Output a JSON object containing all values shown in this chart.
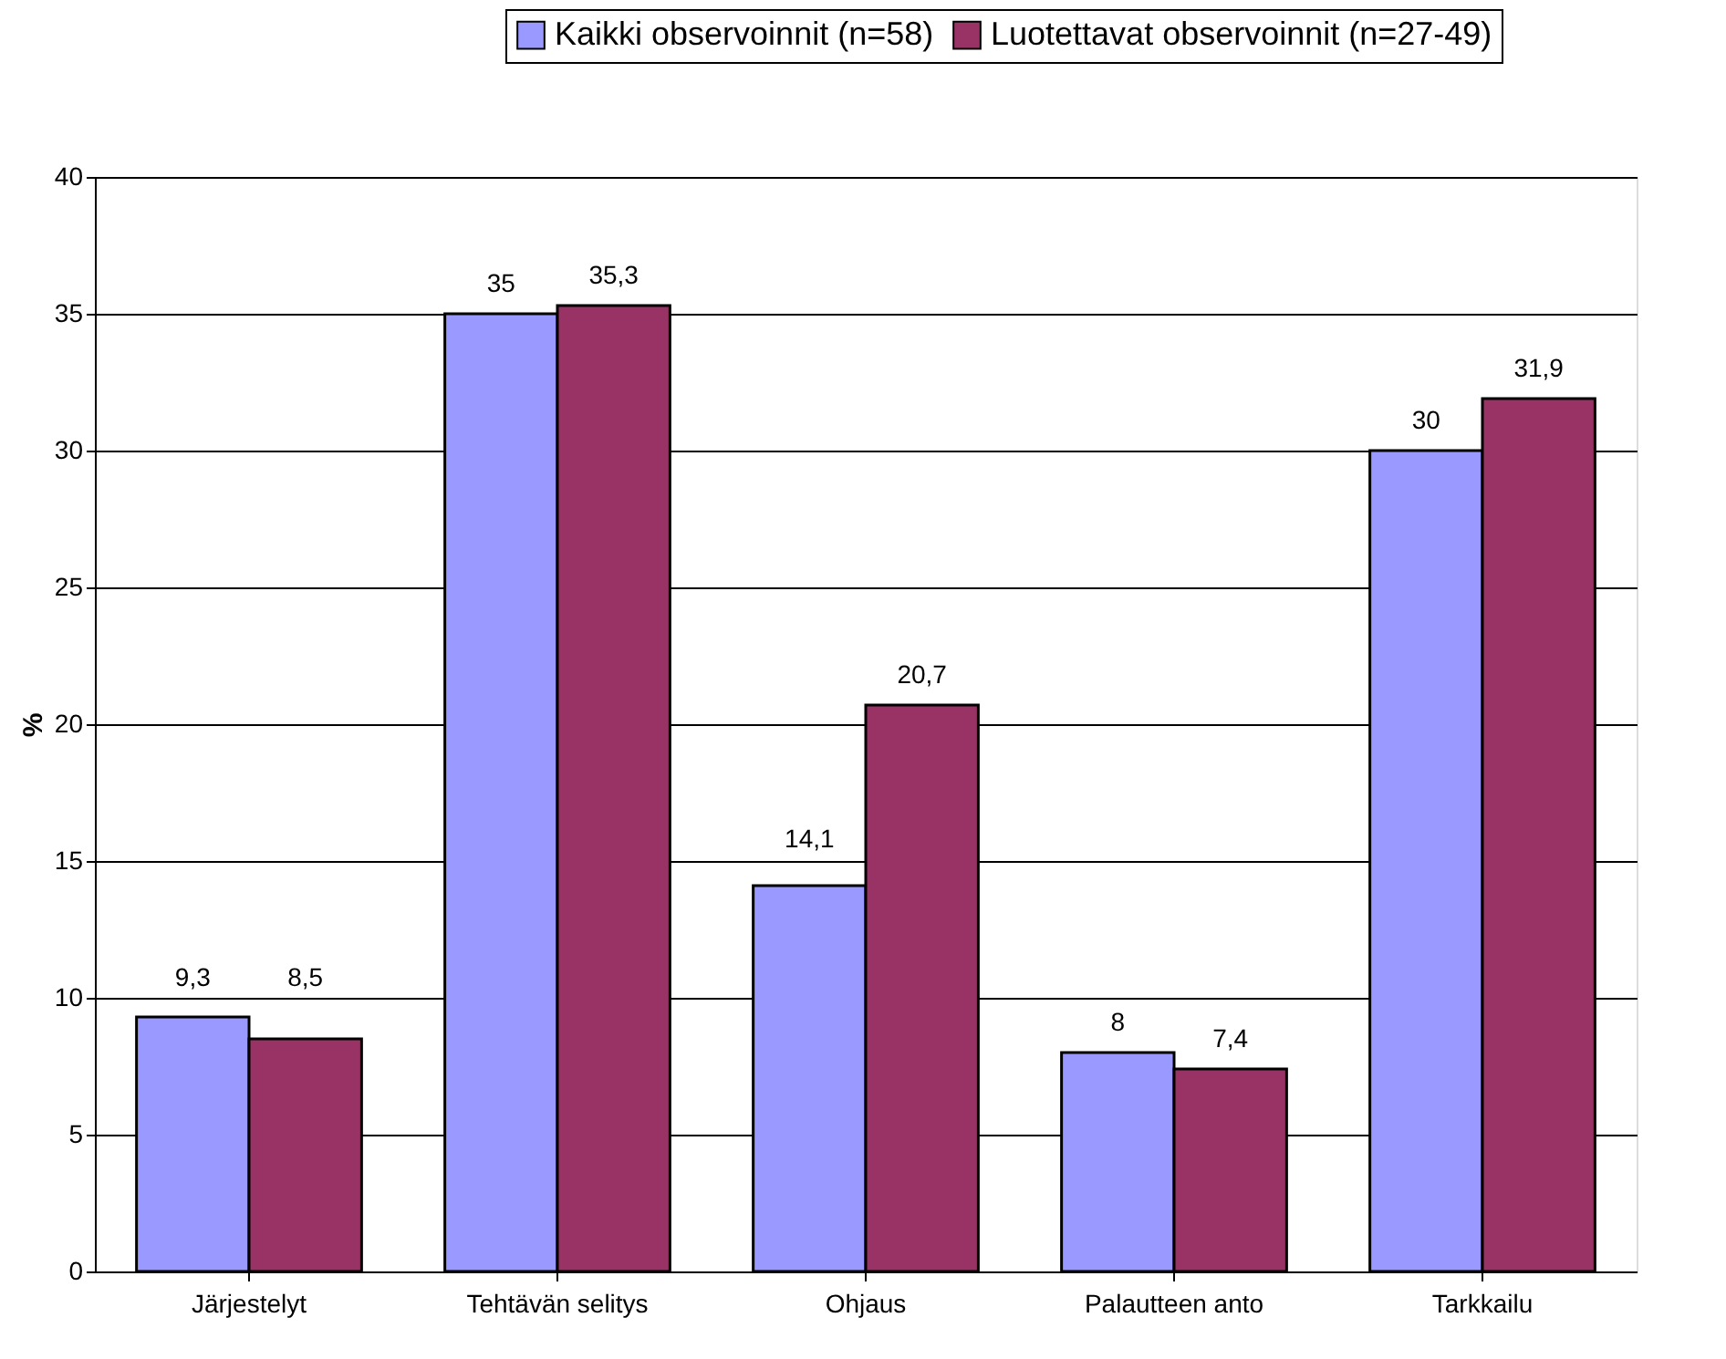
{
  "chart_data": {
    "type": "bar",
    "ylabel": "%",
    "categories": [
      "Järjestelyt",
      "Tehtävän selitys",
      "Ohjaus",
      "Palautteen anto",
      "Tarkkailu"
    ],
    "series": [
      {
        "name": "Kaikki observoinnit (n=58)",
        "color": "#9999ff",
        "values": [
          9.3,
          35,
          14.1,
          8,
          30
        ],
        "value_labels": [
          "9,3",
          "35",
          "14,1",
          "8",
          "30"
        ]
      },
      {
        "name": "Luotettavat observoinnit (n=27-49)",
        "color": "#993366",
        "values": [
          8.5,
          35.3,
          20.7,
          7.4,
          31.9
        ],
        "value_labels": [
          "8,5",
          "35,3",
          "20,7",
          "7,4",
          "31,9"
        ]
      }
    ],
    "ylim": [
      0,
      40
    ],
    "yticks": [
      0,
      5,
      10,
      15,
      20,
      25,
      30,
      35,
      40
    ],
    "grid": "y",
    "legend": "top right"
  }
}
